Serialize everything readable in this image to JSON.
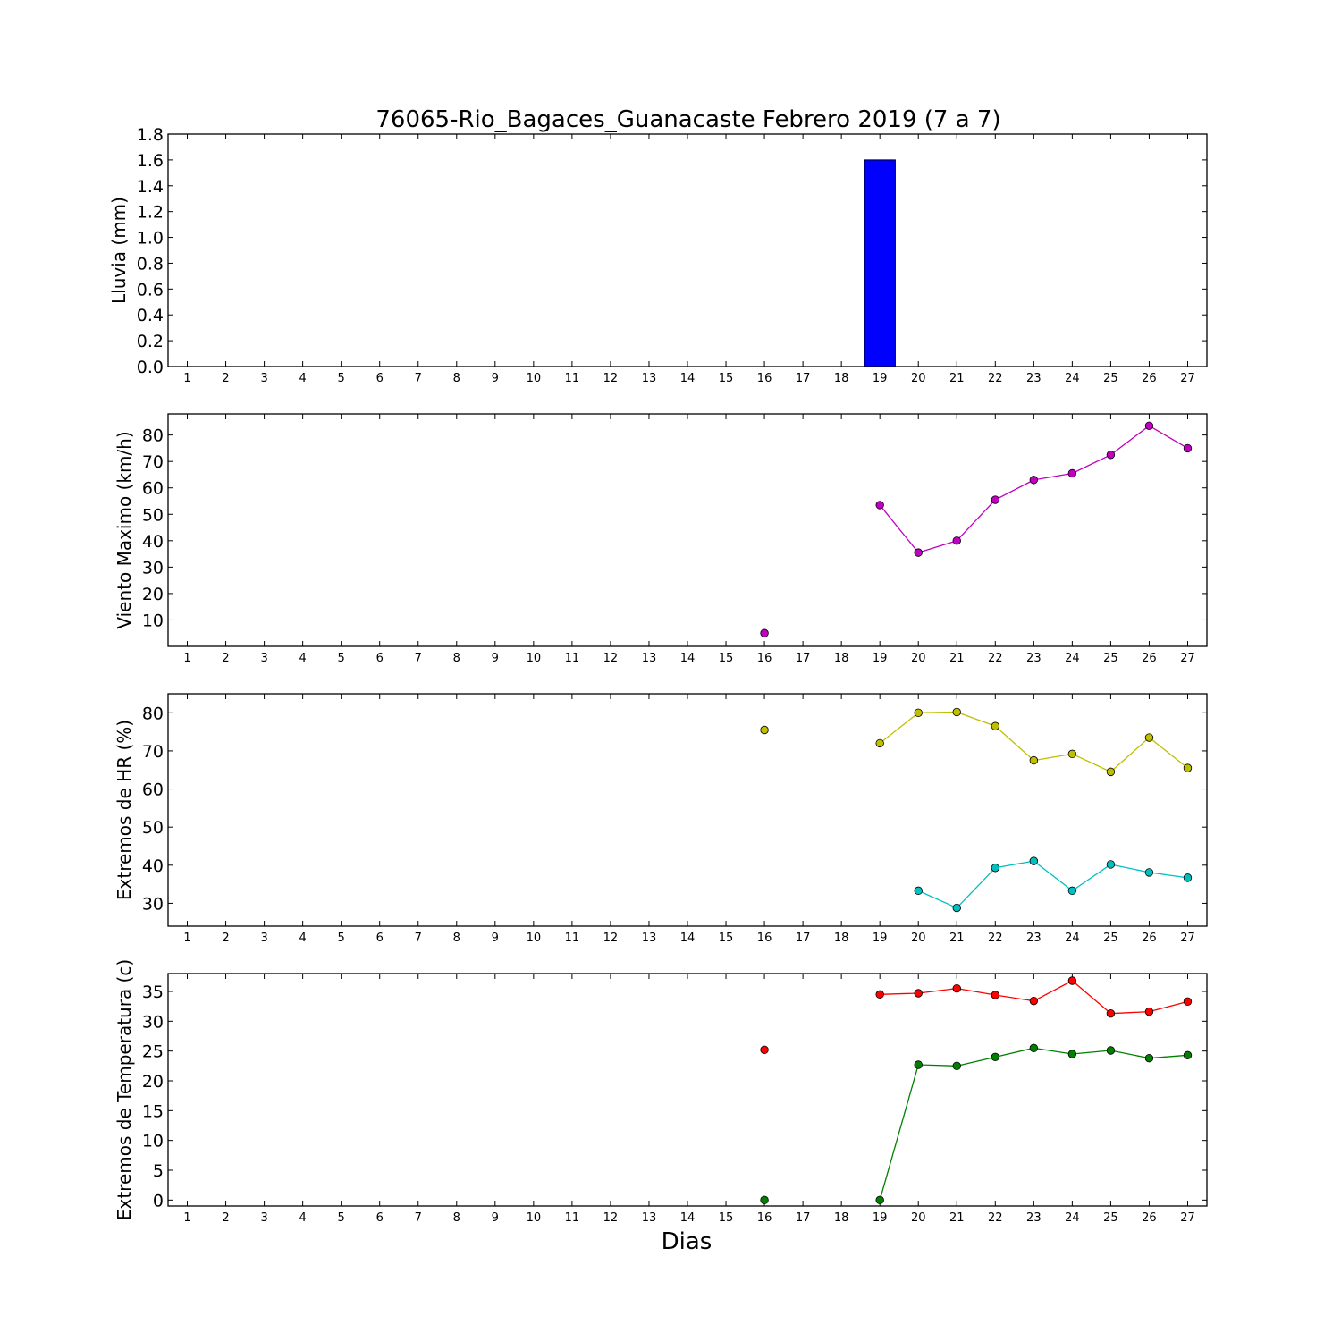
{
  "chart_data": [
    {
      "type": "bar",
      "title": "76065-Rio_Bagaces_Guanacaste Febrero 2019  (7 a 7)",
      "xlabel": "",
      "ylabel": "Lluvia (mm)",
      "categories": [
        "1",
        "2",
        "3",
        "4",
        "5",
        "6",
        "7",
        "8",
        "9",
        "10",
        "11",
        "12",
        "13",
        "14",
        "15",
        "16",
        "17",
        "18",
        "19",
        "20",
        "21",
        "22",
        "23",
        "24",
        "25",
        "26",
        "27"
      ],
      "values": [
        0,
        0,
        0,
        0,
        0,
        0,
        0,
        0,
        0,
        0,
        0,
        0,
        0,
        0,
        0,
        0,
        0,
        0,
        1.6,
        0,
        0,
        0,
        0,
        0,
        0,
        0,
        0
      ],
      "ylim": [
        0,
        1.8
      ],
      "yticks": [
        "0.0",
        "0.2",
        "0.4",
        "0.6",
        "0.8",
        "1.0",
        "1.2",
        "1.4",
        "1.6",
        "1.8"
      ],
      "bar_color": "#0000ff",
      "grid": false
    },
    {
      "type": "line",
      "ylabel": "Viento Maximo (km/h)",
      "x": [
        1,
        2,
        3,
        4,
        5,
        6,
        7,
        8,
        9,
        10,
        11,
        12,
        13,
        14,
        15,
        16,
        17,
        18,
        19,
        20,
        21,
        22,
        23,
        24,
        25,
        26,
        27
      ],
      "series": [
        {
          "color": "#bf00bf",
          "values": [
            null,
            null,
            null,
            null,
            null,
            null,
            null,
            null,
            null,
            null,
            null,
            null,
            null,
            null,
            null,
            5,
            null,
            null,
            53.5,
            35.5,
            40,
            55.5,
            63,
            65.5,
            72.5,
            83.5,
            75
          ]
        }
      ],
      "ylim": [
        0,
        88
      ],
      "yticks": [
        "10",
        "20",
        "30",
        "40",
        "50",
        "60",
        "70",
        "80"
      ],
      "grid": false
    },
    {
      "type": "line",
      "ylabel": "Extremos de HR (%)",
      "x": [
        1,
        2,
        3,
        4,
        5,
        6,
        7,
        8,
        9,
        10,
        11,
        12,
        13,
        14,
        15,
        16,
        17,
        18,
        19,
        20,
        21,
        22,
        23,
        24,
        25,
        26,
        27
      ],
      "series": [
        {
          "color": "#bfbf00",
          "values": [
            null,
            null,
            null,
            null,
            null,
            null,
            null,
            null,
            null,
            null,
            null,
            null,
            null,
            null,
            null,
            75.5,
            null,
            null,
            72,
            80,
            80.2,
            76.5,
            67.5,
            69.2,
            64.5,
            73.5,
            65.5
          ]
        },
        {
          "color": "#00bfbf",
          "values": [
            null,
            null,
            null,
            null,
            null,
            null,
            null,
            null,
            null,
            null,
            null,
            null,
            null,
            null,
            null,
            null,
            null,
            null,
            null,
            33.3,
            28.8,
            39.3,
            41.1,
            33.3,
            40.2,
            38.1,
            36.7
          ]
        }
      ],
      "ylim": [
        24,
        85
      ],
      "yticks": [
        "30",
        "40",
        "50",
        "60",
        "70",
        "80"
      ],
      "grid": false
    },
    {
      "type": "line",
      "ylabel": "Extremos de Temperatura (c)",
      "xlabel": "Dias",
      "x": [
        1,
        2,
        3,
        4,
        5,
        6,
        7,
        8,
        9,
        10,
        11,
        12,
        13,
        14,
        15,
        16,
        17,
        18,
        19,
        20,
        21,
        22,
        23,
        24,
        25,
        26,
        27
      ],
      "series": [
        {
          "color": "#ff0000",
          "values": [
            null,
            null,
            null,
            null,
            null,
            null,
            null,
            null,
            null,
            null,
            null,
            null,
            null,
            null,
            null,
            25.2,
            null,
            null,
            34.5,
            34.7,
            35.5,
            34.4,
            33.4,
            36.8,
            31.3,
            31.6,
            33.3
          ]
        },
        {
          "color": "#008000",
          "values": [
            null,
            null,
            null,
            null,
            null,
            null,
            null,
            null,
            null,
            null,
            null,
            null,
            null,
            null,
            null,
            0,
            null,
            null,
            0,
            22.7,
            22.5,
            24,
            25.5,
            24.5,
            25.1,
            23.8,
            24.3
          ]
        }
      ],
      "ylim": [
        -1,
        38
      ],
      "yticks": [
        "0",
        "5",
        "10",
        "15",
        "20",
        "25",
        "30",
        "35"
      ],
      "grid": false
    }
  ]
}
